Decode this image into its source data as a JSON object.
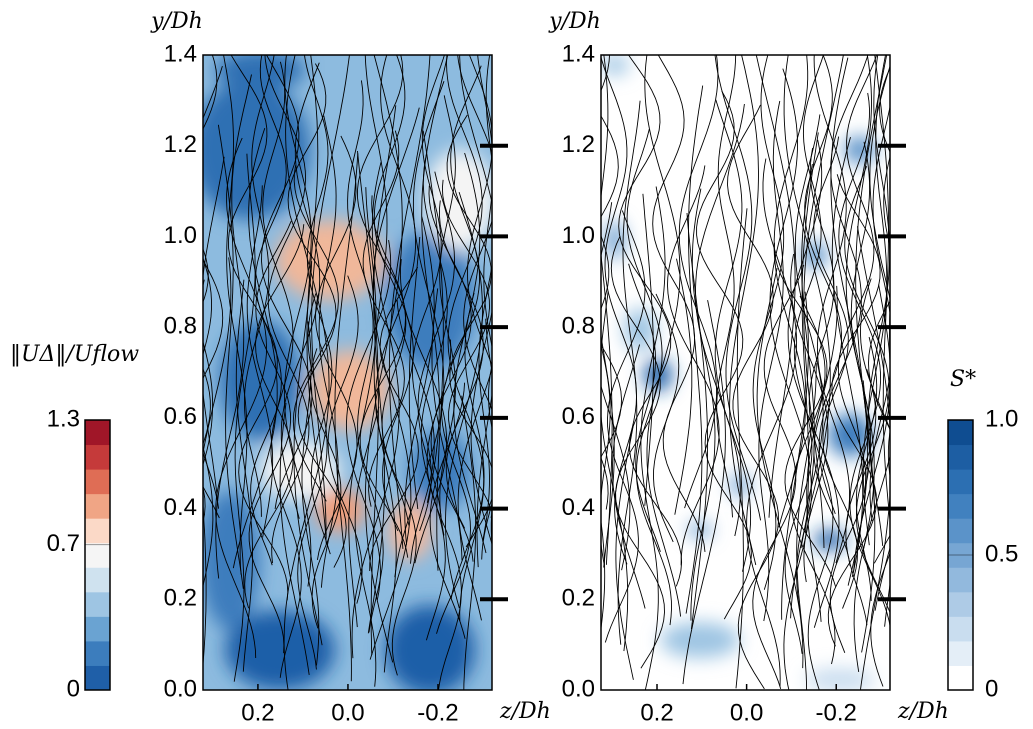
{
  "chart_data": [
    {
      "type": "streamplot",
      "xlabel": "z/Dh",
      "ylabel": "y/Dh",
      "xlim": [
        0.322,
        -0.32
      ],
      "ylim": [
        0,
        1.4
      ],
      "xticks": [
        0.2,
        {
          "value": 0,
          "label": "0.0"
        },
        -0.2
      ],
      "yticks": [
        {
          "value": 0,
          "label": "0.0"
        },
        0.2,
        0.4,
        0.6,
        0.8,
        {
          "value": 1,
          "label": "1.0"
        },
        1.2,
        1.4
      ],
      "colorbar": {
        "label": "‖UΔ‖/Uflow",
        "lim": [
          0,
          1.3
        ],
        "ticks": [
          0,
          0.7,
          1.3
        ],
        "colors": [
          "#1f5fa8",
          "#3c7dbd",
          "#6aa3d2",
          "#9ec5e3",
          "#cfe2ef",
          "#f5f5f5",
          "#fbd9c7",
          "#f0a585",
          "#df6d55",
          "#c53a3a",
          "#a01628"
        ]
      }
    },
    {
      "type": "streamplot",
      "xlabel": "z/Dh",
      "ylabel": "y/Dh",
      "xlim": [
        0.325,
        -0.32
      ],
      "ylim": [
        0,
        1.4
      ],
      "xticks": [
        0.2,
        {
          "value": 0,
          "label": "0.0"
        },
        -0.2
      ],
      "yticks": [
        {
          "value": 0,
          "label": "0.0"
        },
        0.2,
        0.4,
        0.6,
        0.8,
        {
          "value": 1,
          "label": "1.0"
        },
        1.2,
        1.4
      ],
      "colorbar": {
        "label": "S*",
        "lim": [
          0,
          1
        ],
        "ticks": [
          0,
          0.5,
          {
            "value": 1,
            "label": "1.0"
          }
        ],
        "colors": [
          "#ffffff",
          "#e4eef7",
          "#c9ddef",
          "#aecbe6",
          "#92b9dd",
          "#77a6d3",
          "#5b93c9",
          "#4181bf",
          "#2c6fb2",
          "#1d5ea3",
          "#0f4d91"
        ]
      }
    }
  ]
}
